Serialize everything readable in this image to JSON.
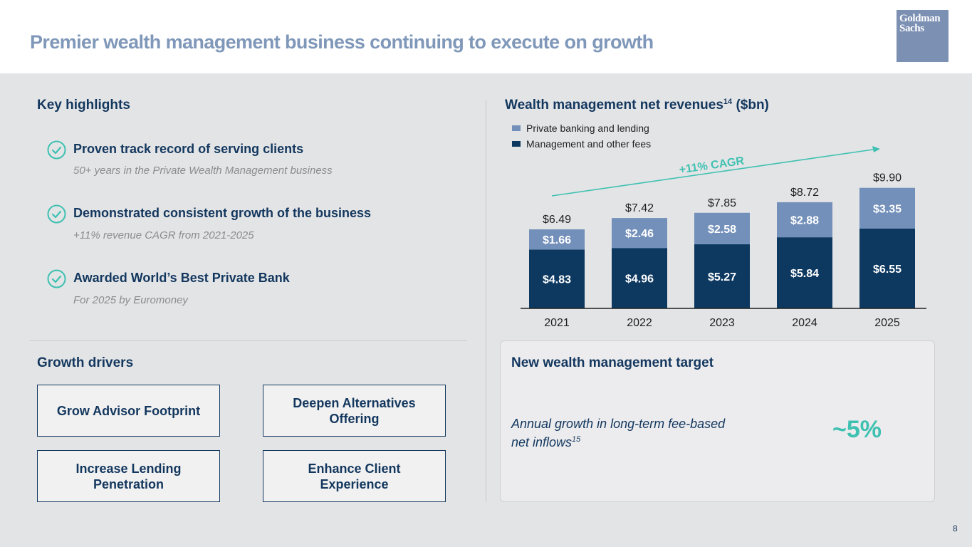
{
  "header": {
    "title": "Premier wealth management business continuing to execute on growth",
    "logo_line1": "Goldman",
    "logo_line2": "Sachs"
  },
  "highlights": {
    "title": "Key highlights",
    "items": [
      {
        "title": "Proven track record of serving clients",
        "sub": "50+ years in the Private Wealth Management business",
        "icon": "checkmark-circle-icon"
      },
      {
        "title": "Demonstrated consistent growth of the business",
        "sub": "+11% revenue CAGR from 2021-2025",
        "icon": "checkmark-circle-icon"
      },
      {
        "title": "Awarded World’s Best Private Bank",
        "sub": "For 2025 by Euromoney",
        "icon": "checkmark-circle-icon"
      }
    ]
  },
  "drivers": {
    "title": "Growth drivers",
    "items": [
      "Grow Advisor Footprint",
      "Deepen Alternatives Offering",
      "Increase Lending Penetration",
      "Enhance Client Experience"
    ]
  },
  "chart_section": {
    "title": "Wealth management net revenues",
    "title_sup": "14",
    "title_unit": " ($bn)"
  },
  "target": {
    "title": "New wealth management target",
    "desc_line1": "Annual growth in long-term fee-based",
    "desc_line2": "net inflows",
    "desc_sup": "15",
    "value": "~5%"
  },
  "page_number": "8",
  "colors": {
    "navy": "#0d3860",
    "light_blue": "#7390ba",
    "teal": "#3ec1b1",
    "heading": "#13375e"
  },
  "chart_data": {
    "type": "bar",
    "stacked": true,
    "categories": [
      "2021",
      "2022",
      "2023",
      "2024",
      "2025"
    ],
    "series": [
      {
        "name": "Management and other fees",
        "values": [
          4.83,
          4.96,
          5.27,
          5.84,
          6.55
        ],
        "labels": [
          "$4.83",
          "$4.96",
          "$5.27",
          "$5.84",
          "$6.55"
        ],
        "color": "#0d3860"
      },
      {
        "name": "Private banking and lending",
        "values": [
          1.66,
          2.46,
          2.58,
          2.88,
          3.35
        ],
        "labels": [
          "$1.66",
          "$2.46",
          "$2.58",
          "$2.88",
          "$3.35"
        ],
        "color": "#7390ba"
      }
    ],
    "totals": [
      6.49,
      7.42,
      7.85,
      8.72,
      9.9
    ],
    "total_labels": [
      "$6.49",
      "$7.42",
      "$7.85",
      "$8.72",
      "$9.90"
    ],
    "annotation": "+11% CAGR",
    "legend_position": "top-left",
    "ylim": [
      0,
      10
    ],
    "grid": false
  }
}
